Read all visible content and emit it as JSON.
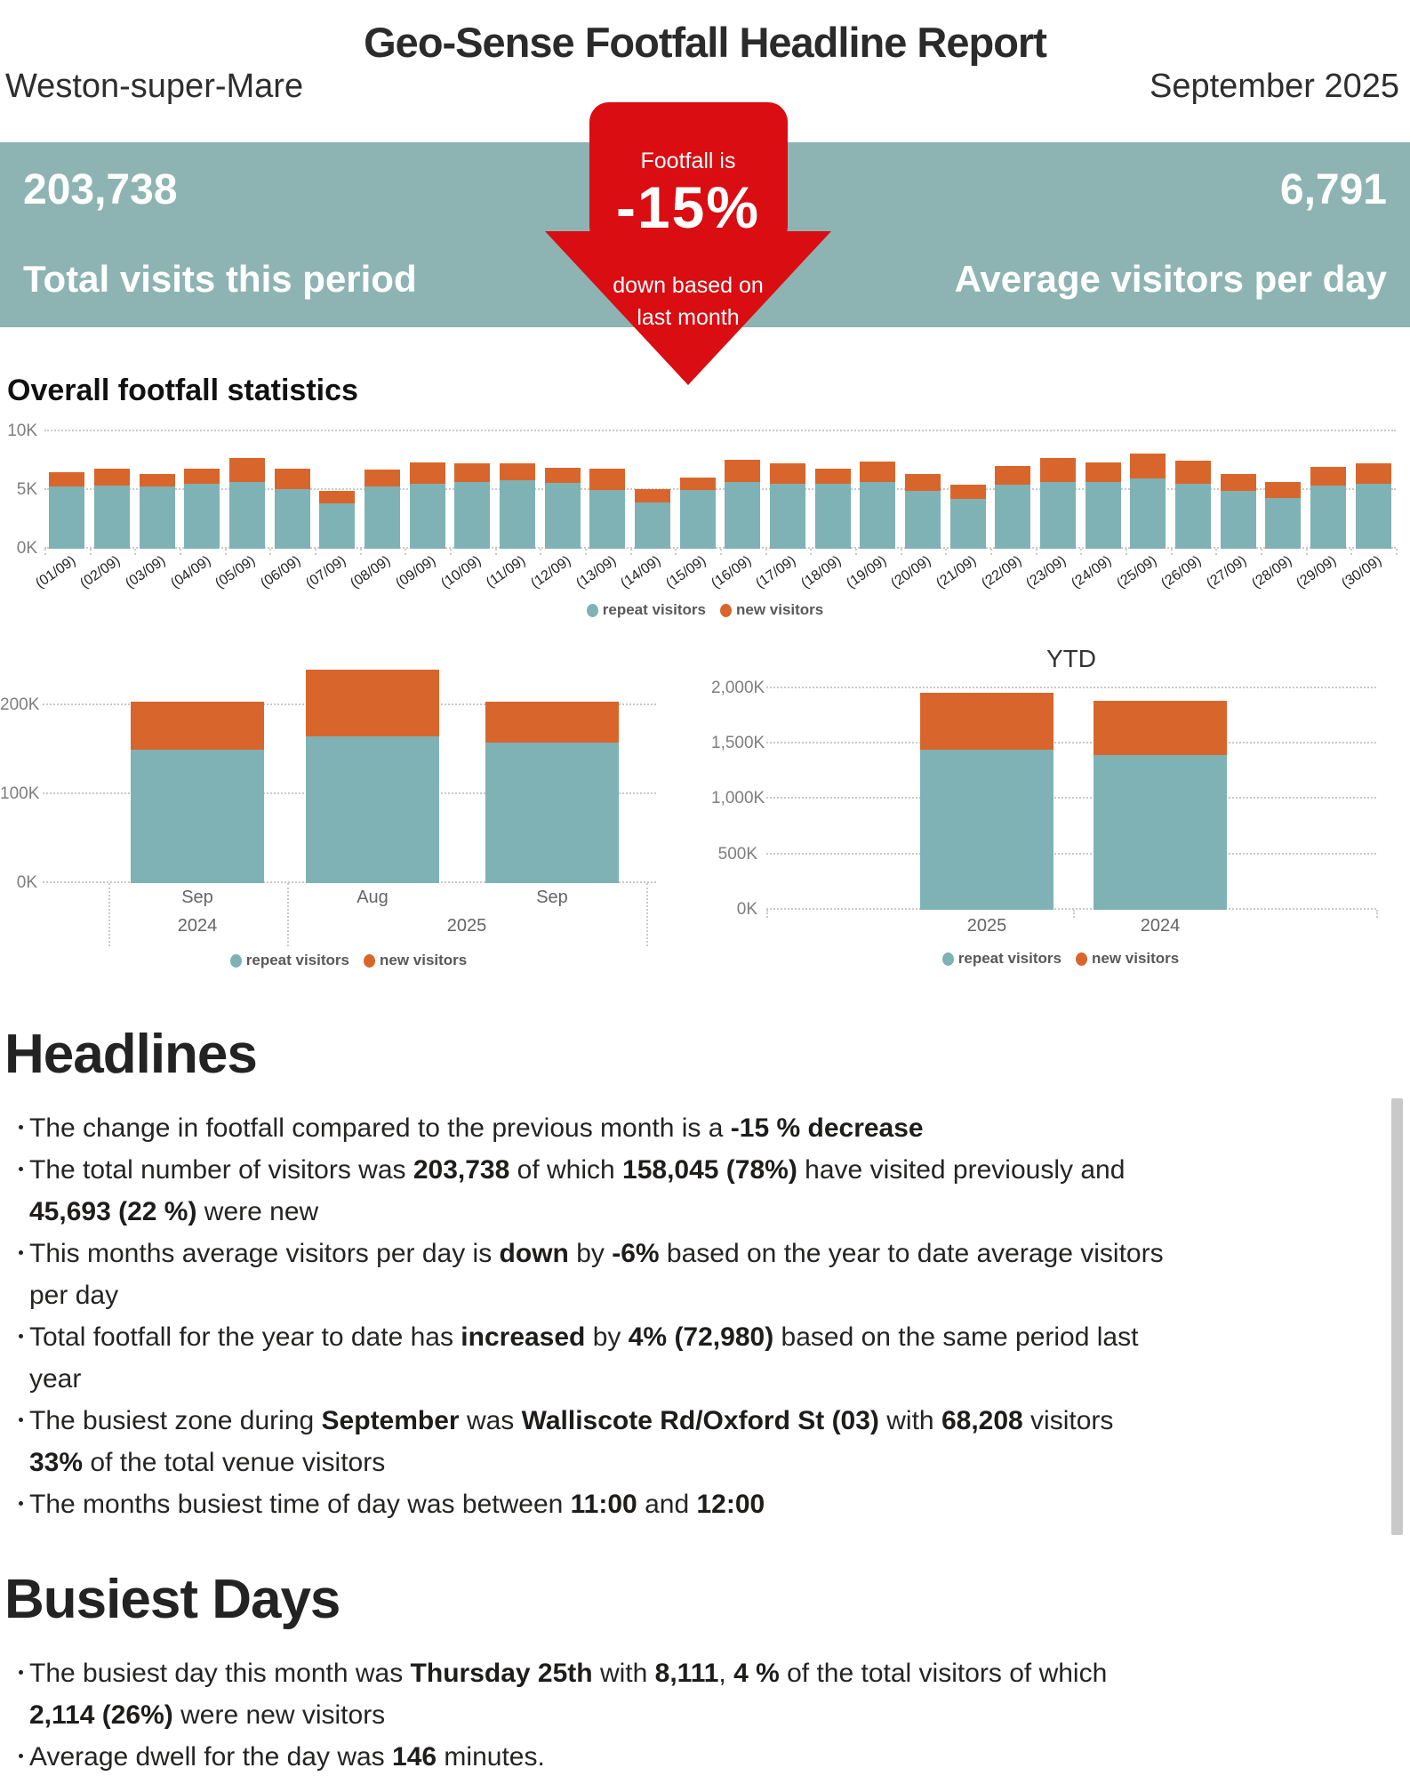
{
  "report": {
    "title": "Geo-Sense Footfall Headline Report",
    "location": "Weston-super-Mare",
    "period": "September 2025"
  },
  "colors": {
    "banner_teal": "#8DB4B2",
    "arrow_red": "#D90D12",
    "repeat_teal": "#7FB2B4",
    "new_orange": "#D8662C"
  },
  "kpi_banner": {
    "total_visits_value": "203,738",
    "total_visits_label": "Total visits this period",
    "avg_visitors_value": "6,791",
    "avg_visitors_label": "Average visitors per day",
    "arrow": {
      "prefix": "Footfall is",
      "value": "-15%",
      "suffix_line1": "down based on",
      "suffix_line2": "last month"
    }
  },
  "section_overall": {
    "heading": "Overall footfall statistics"
  },
  "legend": {
    "repeat_label": "repeat visitors",
    "new_label": "new visitors"
  },
  "chart_data": [
    {
      "name": "overall_footfall_daily",
      "type": "bar",
      "stacked": true,
      "title": "Overall footfall statistics",
      "categories": [
        "(01/09)",
        "(02/09)",
        "(03/09)",
        "(04/09)",
        "(05/09)",
        "(06/09)",
        "(07/09)",
        "(08/09)",
        "(09/09)",
        "(10/09)",
        "(11/09)",
        "(12/09)",
        "(13/09)",
        "(14/09)",
        "(15/09)",
        "(16/09)",
        "(17/09)",
        "(18/09)",
        "(19/09)",
        "(20/09)",
        "(21/09)",
        "(22/09)",
        "(23/09)",
        "(24/09)",
        "(25/09)",
        "(26/09)",
        "(27/09)",
        "(28/09)",
        "(29/09)",
        "(30/09)"
      ],
      "series": [
        {
          "name": "repeat visitors",
          "color": "#7FB2B4",
          "values": [
            5300,
            5400,
            5300,
            5500,
            5700,
            5050,
            3900,
            5300,
            5550,
            5650,
            5850,
            5600,
            5000,
            3950,
            5000,
            5700,
            5500,
            5500,
            5700,
            4950,
            4250,
            5450,
            5650,
            5650,
            5997,
            5500,
            4950,
            4300,
            5400,
            5550
          ]
        },
        {
          "name": "new visitors",
          "color": "#D8662C",
          "values": [
            1250,
            1400,
            1050,
            1350,
            2050,
            1750,
            1000,
            1450,
            1800,
            1600,
            1400,
            1300,
            1850,
            1100,
            1050,
            1850,
            1750,
            1300,
            1700,
            1400,
            1200,
            1600,
            2050,
            1700,
            2114,
            2000,
            1450,
            1400,
            1550,
            1750
          ]
        }
      ],
      "ylim": [
        0,
        10000
      ],
      "yticks": [
        {
          "v": 0,
          "label": "0K"
        },
        {
          "v": 5000,
          "label": "5K"
        },
        {
          "v": 10000,
          "label": "10K"
        }
      ],
      "grid": "dotted-horizontal",
      "legend_position": "bottom-center"
    },
    {
      "name": "monthly_comparison",
      "type": "bar",
      "stacked": true,
      "categories": [
        "Sep",
        "Aug",
        "Sep"
      ],
      "year_groups": [
        {
          "label": "2024",
          "months": [
            "Sep"
          ]
        },
        {
          "label": "2025",
          "months": [
            "Aug",
            "Sep"
          ]
        }
      ],
      "series": [
        {
          "name": "repeat visitors",
          "color": "#7FB2B4",
          "values": [
            150000,
            165000,
            158045
          ]
        },
        {
          "name": "new visitors",
          "color": "#D8662C",
          "values": [
            54000,
            75000,
            45693
          ]
        }
      ],
      "ylim": [
        0,
        248000
      ],
      "yticks": [
        {
          "v": 0,
          "label": "0K"
        },
        {
          "v": 100000,
          "label": "100K"
        },
        {
          "v": 200000,
          "label": "200K"
        }
      ],
      "grid": "dotted-horizontal",
      "legend_position": "bottom-center"
    },
    {
      "name": "ytd_comparison",
      "type": "bar",
      "stacked": true,
      "title": "YTD",
      "categories": [
        "2025",
        "2024"
      ],
      "series": [
        {
          "name": "repeat visitors",
          "color": "#7FB2B4",
          "values": [
            1445000,
            1395000
          ]
        },
        {
          "name": "new visitors",
          "color": "#D8662C",
          "values": [
            515000,
            490000
          ]
        }
      ],
      "ylim": [
        0,
        2112000
      ],
      "yticks": [
        {
          "v": 0,
          "label": "0K"
        },
        {
          "v": 500000,
          "label": "500K"
        },
        {
          "v": 1000000,
          "label": "1,000K"
        },
        {
          "v": 1500000,
          "label": "1,500K"
        },
        {
          "v": 2000000,
          "label": "2,000K"
        }
      ],
      "grid": "dotted-horizontal",
      "legend_position": "bottom-center"
    }
  ],
  "headlines": {
    "heading": "Headlines",
    "items": [
      {
        "lines": [
          [
            {
              "t": "The change in footfall compared to the previous month is a ",
              "b": false
            },
            {
              "t": "-15 % decrease",
              "b": true
            }
          ]
        ]
      },
      {
        "lines": [
          [
            {
              "t": "The total number of visitors was ",
              "b": false
            },
            {
              "t": "203,738",
              "b": true
            },
            {
              "t": " of which ",
              "b": false
            },
            {
              "t": "158,045 (78%)",
              "b": true
            },
            {
              "t": " have visited previously and",
              "b": false
            }
          ],
          [
            {
              "t": "45,693 (22 %)",
              "b": true
            },
            {
              "t": " were new",
              "b": false
            }
          ]
        ]
      },
      {
        "lines": [
          [
            {
              "t": "This months average visitors per day is ",
              "b": false
            },
            {
              "t": "down",
              "b": true
            },
            {
              "t": " by ",
              "b": false
            },
            {
              "t": "-6%",
              "b": true
            },
            {
              "t": " based on the year to date average visitors",
              "b": false
            }
          ],
          [
            {
              "t": "per day",
              "b": false
            }
          ]
        ]
      },
      {
        "lines": [
          [
            {
              "t": "Total footfall for the year to date has ",
              "b": false
            },
            {
              "t": "increased",
              "b": true
            },
            {
              "t": " by ",
              "b": false
            },
            {
              "t": "4% (72,980)",
              "b": true
            },
            {
              "t": " based on the same period last",
              "b": false
            }
          ],
          [
            {
              "t": "year",
              "b": false
            }
          ]
        ]
      },
      {
        "lines": [
          [
            {
              "t": "The busiest zone during ",
              "b": false
            },
            {
              "t": "September",
              "b": true
            },
            {
              "t": " was ",
              "b": false
            },
            {
              "t": "Walliscote Rd/Oxford St (03)",
              "b": true
            },
            {
              "t": " with ",
              "b": false
            },
            {
              "t": "68,208",
              "b": true
            },
            {
              "t": " visitors",
              "b": false
            }
          ],
          [
            {
              "t": "33%",
              "b": true
            },
            {
              "t": " of the total venue visitors",
              "b": false
            }
          ]
        ]
      },
      {
        "lines": [
          [
            {
              "t": "The months busiest time of day was between ",
              "b": false
            },
            {
              "t": "11:00",
              "b": true
            },
            {
              "t": " and ",
              "b": false
            },
            {
              "t": "12:00",
              "b": true
            }
          ]
        ]
      }
    ]
  },
  "busiest_days": {
    "heading": "Busiest Days",
    "items": [
      {
        "lines": [
          [
            {
              "t": "The busiest day this month was ",
              "b": false
            },
            {
              "t": "Thursday 25th",
              "b": true
            },
            {
              "t": " with ",
              "b": false
            },
            {
              "t": "8,111",
              "b": true
            },
            {
              "t": ", ",
              "b": false
            },
            {
              "t": "4 %",
              "b": true
            },
            {
              "t": " of the total visitors of which",
              "b": false
            }
          ],
          [
            {
              "t": "2,114 (26%)",
              "b": true
            },
            {
              "t": " were new visitors",
              "b": false
            }
          ]
        ]
      },
      {
        "lines": [
          [
            {
              "t": "Average dwell for the day was ",
              "b": false
            },
            {
              "t": "146",
              "b": true
            },
            {
              "t": " minutes.",
              "b": false
            }
          ]
        ]
      }
    ]
  }
}
